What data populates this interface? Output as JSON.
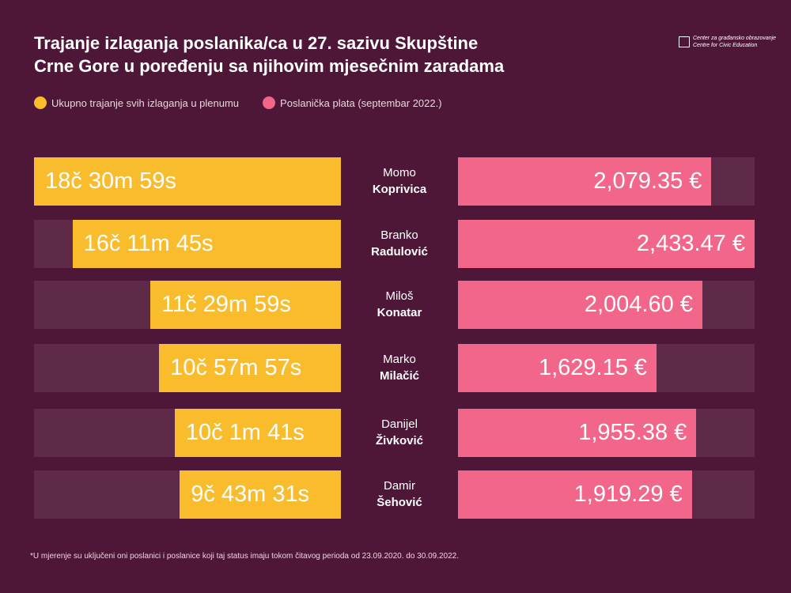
{
  "title_line1": "Trajanje izlaganja poslanika/ca u 27. sazivu Skupštine",
  "title_line2": "Crne Gore u poređenju sa njihovim mjesečnim zaradama",
  "logo": {
    "line1": "Center za građansko obrazovanje",
    "line2": "Centre for Civic Education"
  },
  "footnote": "*U mjerenje su uključeni oni poslanici i poslanice koji taj status imaju tokom čitavog perioda od 23.09.2020. do 30.09.2022.",
  "chart_data": {
    "type": "bar",
    "legend": [
      {
        "name": "Ukupno trajanje svih izlaganja u plenumu",
        "color": "#f9bc2d"
      },
      {
        "name": "Poslanička plata (septembar 2022.)",
        "color": "#f2668a"
      }
    ],
    "categories": [
      {
        "first": "Momo",
        "last": "Koprivica"
      },
      {
        "first": "Branko",
        "last": "Radulović"
      },
      {
        "first": "Miloš",
        "last": "Konatar"
      },
      {
        "first": "Marko",
        "last": "Milačić"
      },
      {
        "first": "Danijel",
        "last": "Živković"
      },
      {
        "first": "Damir",
        "last": "Šehović"
      }
    ],
    "series": [
      {
        "name": "Ukupno trajanje svih izlaganja u plenumu",
        "labels": [
          "18č 30m 59s",
          "16č 11m 45s",
          "11č 29m 59s",
          "10č 57m 57s",
          "10č 1m 41s",
          "9č 43m 31s"
        ],
        "values_seconds": [
          66659,
          58305,
          41399,
          39477,
          36101,
          35011
        ]
      },
      {
        "name": "Poslanička plata (septembar 2022.)",
        "labels": [
          "2,079.35 €",
          "2,433.47 €",
          "2,004.60 €",
          "1,629.15 €",
          "1,955.38 €",
          "1,919.29 €"
        ],
        "values": [
          2079.35,
          2433.47,
          2004.6,
          1629.15,
          1955.38,
          1919.29
        ]
      }
    ],
    "colors": {
      "background": "#4f1737",
      "track": "#5e2a48"
    }
  }
}
